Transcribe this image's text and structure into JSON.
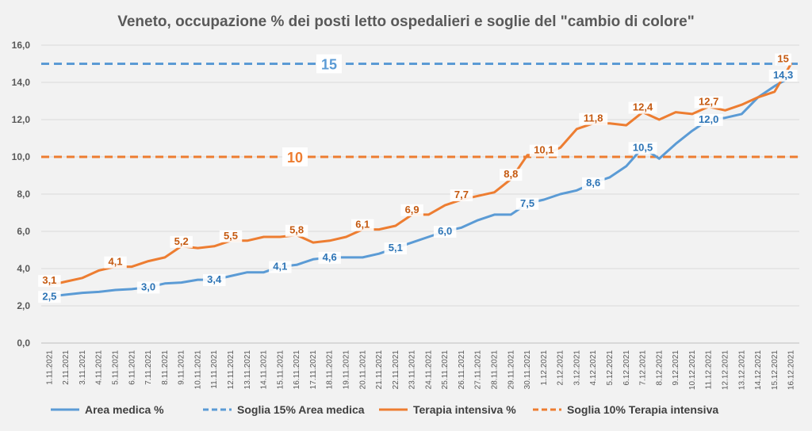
{
  "chart_data": {
    "type": "line",
    "title": "Veneto, occupazione % dei posti letto ospedalieri e soglie del \"cambio di colore\"",
    "ylim": [
      0,
      16
    ],
    "yticks": [
      "0,0",
      "2,0",
      "4,0",
      "6,0",
      "8,0",
      "10,0",
      "12,0",
      "14,0",
      "16,0"
    ],
    "ytick_values": [
      0,
      2,
      4,
      6,
      8,
      10,
      12,
      14,
      16
    ],
    "grid": true,
    "legend_position": "bottom",
    "categories": [
      "1.11.2021",
      "2.11.2021",
      "3.11.2021",
      "4.11.2021",
      "5.11.2021",
      "6.11.2021",
      "7.11.2021",
      "8.11.2021",
      "9.11.2021",
      "10.11.2021",
      "11.11.2021",
      "12.11.2021",
      "13.11.2021",
      "14.11.2021",
      "15.11.2021",
      "16.11.2021",
      "17.11.2021",
      "18.11.2021",
      "19.11.2021",
      "20.11.2021",
      "21.11.2021",
      "22.11.2021",
      "23.11.2021",
      "24.11.2021",
      "25.11.2021",
      "26.11.2021",
      "27.11.2021",
      "28.11.2021",
      "29.11.2021",
      "30.11.2021",
      "1.12.2021",
      "2.12.2021",
      "3.12.2021",
      "4.12.2021",
      "5.12.2021",
      "6.12.2021",
      "7.12.2021",
      "8.12.2021",
      "9.12.2021",
      "10.12.2021",
      "11.12.2021",
      "12.12.2021",
      "13.12.2021",
      "14.12.2021",
      "15.12.2021",
      "16.12.2021"
    ],
    "series": [
      {
        "name": "Area medica %",
        "color": "#5b9bd5",
        "style": "solid",
        "values": [
          2.5,
          2.6,
          2.7,
          2.75,
          2.85,
          2.9,
          3.0,
          3.2,
          3.25,
          3.4,
          3.4,
          3.6,
          3.8,
          3.8,
          4.1,
          4.2,
          4.5,
          4.6,
          4.6,
          4.6,
          4.8,
          5.1,
          5.4,
          5.7,
          6.0,
          6.2,
          6.6,
          6.9,
          6.9,
          7.5,
          7.7,
          8.0,
          8.2,
          8.6,
          8.9,
          9.5,
          10.5,
          9.9,
          10.7,
          11.4,
          12.0,
          12.1,
          12.3,
          13.2,
          13.8,
          14.3
        ],
        "labels": [
          {
            "index": 0,
            "text": "2,5"
          },
          {
            "index": 6,
            "text": "3,0"
          },
          {
            "index": 10,
            "text": "3,4"
          },
          {
            "index": 14,
            "text": "4,1"
          },
          {
            "index": 17,
            "text": "4,6"
          },
          {
            "index": 21,
            "text": "5,1"
          },
          {
            "index": 24,
            "text": "6,0"
          },
          {
            "index": 29,
            "text": "7,5"
          },
          {
            "index": 33,
            "text": "8,6"
          },
          {
            "index": 36,
            "text": "10,5"
          },
          {
            "index": 40,
            "text": "12,0"
          },
          {
            "index": 45,
            "text": "14,3"
          }
        ]
      },
      {
        "name": "Terapia intensiva %",
        "color": "#ed7d31",
        "style": "solid",
        "values": [
          3.1,
          3.3,
          3.5,
          3.9,
          4.1,
          4.1,
          4.4,
          4.6,
          5.2,
          5.1,
          5.2,
          5.5,
          5.5,
          5.7,
          5.7,
          5.8,
          5.4,
          5.5,
          5.7,
          6.1,
          6.1,
          6.3,
          6.9,
          6.9,
          7.4,
          7.7,
          7.9,
          8.1,
          8.8,
          10.1,
          10.1,
          10.5,
          11.5,
          11.8,
          11.8,
          11.7,
          12.4,
          12.0,
          12.4,
          12.3,
          12.7,
          12.5,
          12.8,
          13.2,
          13.5,
          15.0
        ],
        "labels": [
          {
            "index": 0,
            "text": "3,1"
          },
          {
            "index": 4,
            "text": "4,1"
          },
          {
            "index": 8,
            "text": "5,2"
          },
          {
            "index": 11,
            "text": "5,5"
          },
          {
            "index": 15,
            "text": "5,8"
          },
          {
            "index": 19,
            "text": "6,1"
          },
          {
            "index": 22,
            "text": "6,9"
          },
          {
            "index": 25,
            "text": "7,7"
          },
          {
            "index": 28,
            "text": "8,8"
          },
          {
            "index": 30,
            "text": "10,1"
          },
          {
            "index": 33,
            "text": "11,8"
          },
          {
            "index": 36,
            "text": "12,4"
          },
          {
            "index": 40,
            "text": "12,7"
          },
          {
            "index": 45,
            "text": "15"
          }
        ]
      }
    ],
    "thresholds": [
      {
        "name": "Soglia 15% Area medica",
        "value": 15,
        "label": "15",
        "color": "#5b9bd5",
        "style": "dashed"
      },
      {
        "name": "Soglia 10% Terapia intensiva",
        "value": 10,
        "label": "10",
        "color": "#ed7d31",
        "style": "dashed"
      }
    ],
    "legend": [
      {
        "label": "Area medica %",
        "color": "#5b9bd5",
        "style": "solid"
      },
      {
        "label": "Soglia 15% Area medica",
        "color": "#5b9bd5",
        "style": "dashed"
      },
      {
        "label": "Terapia intensiva %",
        "color": "#ed7d31",
        "style": "solid"
      },
      {
        "label": "Soglia 10% Terapia intensiva",
        "color": "#ed7d31",
        "style": "dashed"
      }
    ]
  }
}
